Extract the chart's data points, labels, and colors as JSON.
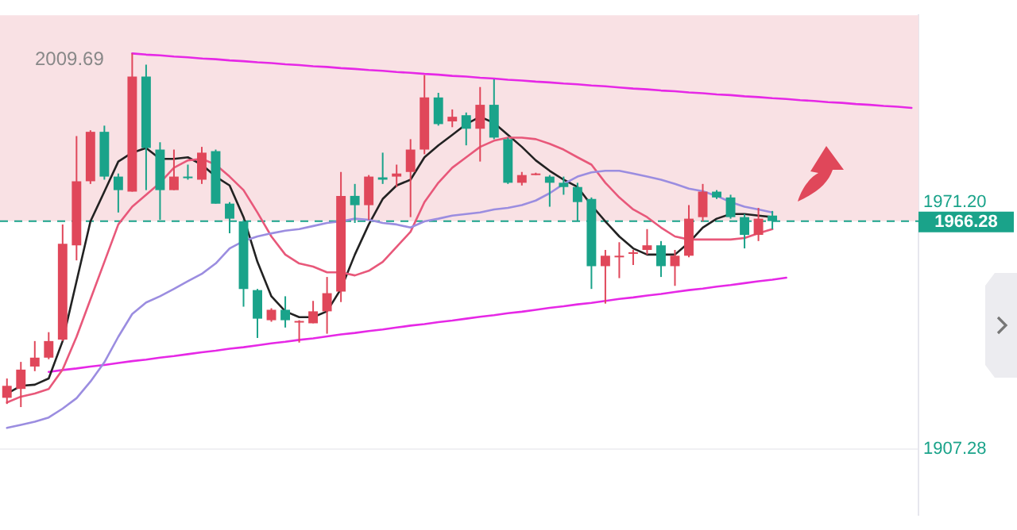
{
  "chart_data": {
    "type": "candlestick",
    "tick_labels": "y",
    "grid": "y",
    "legend": false,
    "categories": [
      null,
      null,
      null,
      null,
      null,
      null,
      null,
      null,
      null,
      null,
      null,
      null,
      null,
      null,
      null,
      null,
      null,
      null,
      null,
      null,
      null,
      null,
      null,
      null,
      null,
      null,
      null,
      null,
      null,
      null,
      null,
      null,
      null,
      null,
      null,
      null,
      null,
      null,
      null,
      null,
      null,
      null,
      null,
      null,
      null,
      null,
      null,
      null,
      null,
      null,
      null,
      null,
      null,
      null,
      null,
      null,
      null,
      null,
      null,
      null,
      null,
      null,
      null,
      null,
      null,
      null
    ],
    "ylim": [
      1890.2,
      2019.6
    ],
    "yticks": [
      1907.28,
      {
        "value": 1971.2,
        "label": "1971.20"
      }
    ],
    "series": [
      {
        "type": "line",
        "color": "#9b8de0",
        "values": [
          1912.7,
          1913.5,
          1914.3,
          1915.4,
          1917.7,
          1920.4,
          1924.7,
          1929.7,
          1936.3,
          1942.2,
          1945.2,
          1946.8,
          1948.7,
          1950.7,
          1952.6,
          1955.3,
          1959.2,
          1961.1,
          1962.3,
          1963.1,
          1963.8,
          1964.2,
          1965.0,
          1965.8,
          1966.2,
          1966.9,
          1966.6,
          1965.8,
          1965.4,
          1964.6,
          1966.2,
          1966.9,
          1967.7,
          1968.1,
          1968.5,
          1969.3,
          1969.7,
          1970.4,
          1971.6,
          1973.5,
          1975.9,
          1977.8,
          1978.9,
          1979.3,
          1979.3,
          1978.6,
          1977.8,
          1977.0,
          1975.9,
          1974.7,
          1974.0,
          1972.8,
          1971.2,
          1970.0,
          1969.3,
          1968.5,
          null,
          null,
          null,
          null,
          null,
          null,
          null,
          null,
          null,
          null
        ]
      },
      {
        "type": "line",
        "color": "#e8587a",
        "values": [
          1919.3,
          1920.8,
          1921.6,
          1922.8,
          1927.8,
          1936.3,
          1946.0,
          1955.7,
          1965.4,
          1970.0,
          1973.1,
          1976.2,
          1980.1,
          1982.0,
          1982.4,
          1980.9,
          1977.8,
          1974.3,
          1968.5,
          1962.3,
          1957.6,
          1955.3,
          1954.5,
          1953.0,
          1953.0,
          1952.2,
          1953.4,
          1955.7,
          1959.6,
          1963.5,
          1971.2,
          1976.2,
          1980.1,
          1982.8,
          1985.5,
          1987.1,
          1987.9,
          1987.9,
          1987.5,
          1986.3,
          1984.8,
          1982.8,
          1980.9,
          1976.2,
          1972.4,
          1969.3,
          1967.3,
          1964.6,
          1962.3,
          1961.5,
          1961.5,
          1961.5,
          1961.5,
          1961.9,
          1963.1,
          1964.2,
          null,
          null,
          null,
          null,
          null,
          null,
          null,
          null,
          null,
          null
        ]
      },
      {
        "type": "line",
        "color": "#222222",
        "values": [
          1921.6,
          1923.6,
          1923.9,
          1925.5,
          1935.2,
          1950.7,
          1966.2,
          1973.9,
          1981.7,
          1984.0,
          1985.2,
          1982.4,
          1982.4,
          1982.8,
          1980.9,
          1977.8,
          1975.5,
          1967.3,
          1955.7,
          1946.8,
          1942.9,
          1941.4,
          1941.4,
          1942.9,
          1948.7,
          1957.6,
          1965.4,
          1972.0,
          1975.5,
          1977.0,
          1982.8,
          1985.9,
          1988.6,
          1991.4,
          1993.3,
          1991.7,
          1988.6,
          1985.5,
          1982.0,
          1979.3,
          1977.0,
          1975.1,
          1970.4,
          1966.2,
          1962.3,
          1959.2,
          1957.6,
          1957.6,
          1957.6,
          1960.7,
          1964.6,
          1966.9,
          1968.1,
          1968.1,
          1967.7,
          1967.3,
          null,
          null,
          null,
          null,
          null,
          null,
          null,
          null,
          null,
          null
        ]
      },
      {
        "type": "line",
        "color": "#e628e6",
        "values": [
          null,
          null,
          null,
          null,
          null,
          null,
          null,
          null,
          null,
          2009.7,
          2009.4,
          2009.2,
          2008.9,
          2008.7,
          2008.4,
          2008.2,
          2007.9,
          2007.7,
          2007.4,
          2007.2,
          2006.9,
          2006.7,
          2006.4,
          2006.2,
          2005.9,
          2005.7,
          2005.4,
          2005.2,
          2004.9,
          2004.7,
          2004.4,
          2004.2,
          2003.9,
          2003.7,
          2003.4,
          2003.2,
          2002.9,
          2002.7,
          2002.4,
          2002.2,
          2001.9,
          2001.7,
          2001.4,
          2001.2,
          2000.9,
          2000.6,
          2000.4,
          2000.1,
          1999.9,
          1999.6,
          1999.4,
          1999.1,
          1998.9,
          1998.6,
          1998.4,
          1998.1,
          1997.9,
          1997.6,
          1997.4,
          1997.1,
          1996.9,
          1996.6,
          1996.4,
          1996.1,
          1995.9,
          1995.6
        ]
      },
      {
        "type": "line",
        "color": "#e628e6",
        "values": [
          null,
          null,
          null,
          1927.2,
          1927.7,
          1928.1,
          1928.6,
          1929.0,
          1929.5,
          1930.0,
          1930.4,
          1930.9,
          1931.3,
          1931.8,
          1932.3,
          1932.7,
          1933.2,
          1933.6,
          1934.1,
          1934.6,
          1935.0,
          1935.5,
          1935.9,
          1936.4,
          1936.9,
          1937.3,
          1937.8,
          1938.2,
          1938.7,
          1939.2,
          1939.6,
          1940.1,
          1940.5,
          1941.0,
          1941.5,
          1941.9,
          1942.4,
          1942.8,
          1943.3,
          1943.8,
          1944.2,
          1944.7,
          1945.1,
          1945.6,
          1946.1,
          1946.5,
          1947.0,
          1947.4,
          1947.9,
          1948.4,
          1948.8,
          1949.3,
          1949.7,
          1950.2,
          1950.7,
          1951.1,
          1951.6,
          null,
          null,
          null,
          null,
          null,
          null,
          null,
          null,
          null
        ]
      },
      {
        "type": "candlestick",
        "colors": [
          "#e0475a",
          "#e0475a",
          "#e0475a",
          "#e0475a",
          "#e0475a",
          "#e0475a",
          "#e0475a",
          "#1aa38a",
          "#1aa38a",
          "#e0475a",
          "#1aa38a",
          "#1aa38a",
          "#e0475a",
          "#1aa38a",
          "#e0475a",
          "#1aa38a",
          "#1aa38a",
          "#1aa38a",
          "#1aa38a",
          "#e0475a",
          "#1aa38a",
          "#e0475a",
          "#e0475a",
          "#e0475a",
          "#e0475a",
          "#1aa38a",
          "#e0475a",
          "#1aa38a",
          "#e0475a",
          "#e0475a",
          "#e0475a",
          "#1aa38a",
          "#e0475a",
          "#1aa38a",
          "#e0475a",
          "#1aa38a",
          "#1aa38a",
          "#e0475a",
          "#e0475a",
          "#1aa38a",
          "#1aa38a",
          "#1aa38a",
          "#1aa38a",
          "#e0475a",
          "#e0475a",
          "#e0475a",
          "#e0475a",
          "#1aa38a",
          "#e0475a",
          "#e0475a",
          "#e0475a",
          "#1aa38a",
          "#1aa38a",
          "#1aa38a",
          "#e0475a",
          "#1aa38a",
          null,
          null,
          null,
          null,
          null,
          null,
          null,
          null,
          null,
          null
        ],
        "ohlc": [
          [
            1920.5,
            1925.5,
            1918.9,
            1923.6
          ],
          [
            1922.8,
            1929.8,
            1918.1,
            1927.8
          ],
          [
            1928.6,
            1935.2,
            1927.4,
            1930.9
          ],
          [
            1930.9,
            1937.5,
            1930.5,
            1935.2
          ],
          [
            1935.6,
            1965.4,
            1935.2,
            1960.4
          ],
          [
            1960.0,
            1988.3,
            1956.1,
            1976.6
          ],
          [
            1976.6,
            1989.8,
            1975.9,
            1989.4
          ],
          [
            1989.4,
            1991.0,
            1977.0,
            1977.8
          ],
          [
            1977.8,
            1978.6,
            1968.5,
            1974.3
          ],
          [
            1973.9,
            2009.7,
            1973.9,
            2003.7
          ],
          [
            2003.7,
            2006.8,
            1974.3,
            1985.2
          ],
          [
            1984.8,
            1986.7,
            1966.6,
            1974.3
          ],
          [
            1974.3,
            1984.8,
            1974.3,
            1977.8
          ],
          [
            1977.8,
            1980.9,
            1977.0,
            1977.6
          ],
          [
            1977.0,
            1985.5,
            1975.9,
            1984.0
          ],
          [
            1984.4,
            1984.8,
            1970.8,
            1970.8
          ],
          [
            1970.8,
            1971.2,
            1963.1,
            1966.9
          ],
          [
            1966.2,
            1966.6,
            1944.1,
            1948.7
          ],
          [
            1948.4,
            1948.7,
            1936.0,
            1941.0
          ],
          [
            1940.6,
            1943.7,
            1940.2,
            1943.3
          ],
          [
            1943.3,
            1946.8,
            1938.7,
            1940.6
          ],
          [
            1940.2,
            1940.6,
            1934.8,
            1940.4
          ],
          [
            1939.8,
            1945.6,
            1939.8,
            1942.9
          ],
          [
            1942.9,
            1951.8,
            1937.1,
            1947.6
          ],
          [
            1948.0,
            1979.0,
            1945.3,
            1972.8
          ],
          [
            1972.8,
            1975.9,
            1965.8,
            1970.4
          ],
          [
            1970.4,
            1978.2,
            1966.6,
            1977.8
          ],
          [
            1977.6,
            1984.0,
            1975.9,
            1977.0
          ],
          [
            1977.8,
            1980.9,
            1975.1,
            1978.6
          ],
          [
            1979.0,
            1987.5,
            1967.3,
            1984.8
          ],
          [
            1984.8,
            2004.1,
            1983.6,
            1998.3
          ],
          [
            1998.3,
            1999.5,
            1991.0,
            1991.4
          ],
          [
            1992.1,
            1995.2,
            1990.6,
            1993.3
          ],
          [
            1993.7,
            1994.4,
            1985.9,
            1990.2
          ],
          [
            1990.2,
            2001.0,
            1981.7,
            1996.4
          ],
          [
            1996.4,
            2003.0,
            1987.5,
            1987.9
          ],
          [
            1987.5,
            1987.9,
            1975.9,
            1976.2
          ],
          [
            1976.2,
            1979.0,
            1975.5,
            1978.2
          ],
          [
            1978.4,
            1978.8,
            1978.2,
            1978.6
          ],
          [
            1977.8,
            1978.2,
            1970.0,
            1976.2
          ],
          [
            1976.2,
            1977.8,
            1973.1,
            1975.1
          ],
          [
            1975.1,
            1976.2,
            1966.2,
            1971.2
          ],
          [
            1972.0,
            1972.4,
            1948.7,
            1954.6
          ],
          [
            1954.6,
            1958.8,
            1944.9,
            1957.3
          ],
          [
            1957.1,
            1960.8,
            1951.5,
            1957.3
          ],
          [
            1958.0,
            1958.8,
            1954.9,
            1958.2
          ],
          [
            1958.8,
            1964.2,
            1957.6,
            1960.0
          ],
          [
            1960.0,
            1961.1,
            1951.8,
            1954.6
          ],
          [
            1954.6,
            1958.8,
            1949.5,
            1957.3
          ],
          [
            1957.3,
            1970.4,
            1956.9,
            1966.9
          ],
          [
            1967.3,
            1975.9,
            1966.2,
            1973.9
          ],
          [
            1973.9,
            1974.3,
            1972.0,
            1972.4
          ],
          [
            1972.4,
            1973.1,
            1966.9,
            1967.3
          ],
          [
            1967.3,
            1968.1,
            1959.2,
            1962.7
          ],
          [
            1962.7,
            1969.7,
            1961.1,
            1966.9
          ],
          [
            1967.7,
            1968.9,
            1964.2,
            1966.28
          ],
          null,
          null,
          null,
          null,
          null,
          null,
          null,
          null,
          null,
          null
        ]
      }
    ],
    "ref_lines": [
      {
        "axis": "y",
        "value": 1966.28,
        "label": "1966.28",
        "color": "#1aa38a",
        "line_style": "dashed"
      }
    ],
    "bands": [
      {
        "axis": "y",
        "from": 1966.28,
        "to": 2019.6,
        "color": "#f9e1e4"
      }
    ],
    "annotations": [
      "2009.69"
    ]
  }
}
